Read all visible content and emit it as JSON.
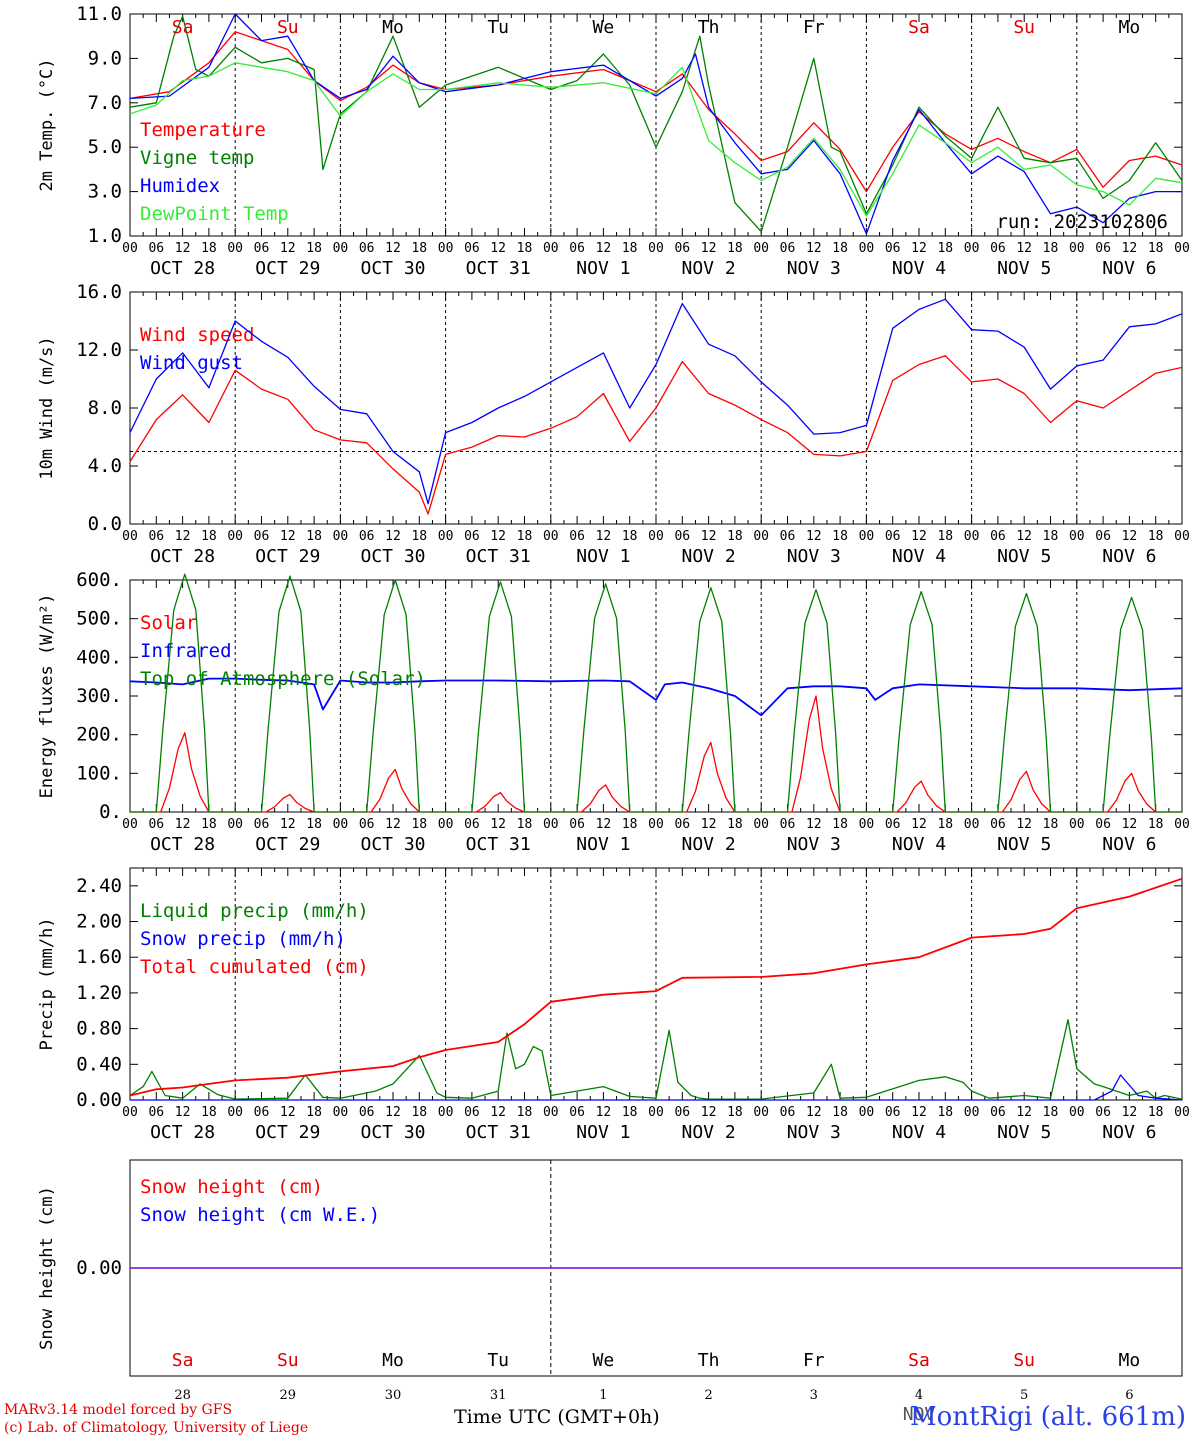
{
  "run_label": "run: 2023102806",
  "x_ticks_hours": [
    "00",
    "06",
    "12",
    "18"
  ],
  "dates": [
    "OCT 28",
    "OCT 29",
    "OCT 30",
    "OCT 31",
    "NOV  1",
    "NOV  2",
    "NOV  3",
    "NOV  4",
    "NOV  5",
    "NOV  6"
  ],
  "weekdays": [
    "Sa",
    "Su",
    "Mo",
    "Tu",
    "We",
    "Th",
    "Fr",
    "Sa",
    "Su",
    "Mo"
  ],
  "weekend_color": "#e00000",
  "bottom": {
    "day_numbers": [
      "28",
      "29",
      "30",
      "31",
      "1",
      "2",
      "3",
      "4",
      "5",
      "6"
    ],
    "month_label": "NOV",
    "x_title": "Time UTC (GMT+0h)",
    "footer_line1": "MARv3.14 model forced by GFS",
    "footer_line2": "(c) Lab. of Climatology, University of Liege",
    "station": "MontRigi (alt. 661m)"
  },
  "chart_data": [
    {
      "type": "line",
      "ylabel": "2m Temp. (°C)",
      "ylim": [
        1,
        11
      ],
      "y_ticks": [
        "1.0",
        "3.0",
        "5.0",
        "7.0",
        "9.0",
        "11.0"
      ],
      "x_unit": "hours since OCT 28 00 UTC",
      "series": [
        {
          "name": "Temperature",
          "color": "#ff0000",
          "x": [
            0,
            9,
            18,
            24,
            30,
            36,
            42,
            48,
            54,
            60,
            66,
            72,
            84,
            96,
            108,
            120,
            126,
            132,
            138,
            144,
            150,
            156,
            162,
            168,
            174,
            180,
            186,
            192,
            198,
            204,
            210,
            216,
            222,
            228,
            234,
            240
          ],
          "y": [
            7.2,
            7.5,
            8.8,
            10.2,
            9.8,
            9.4,
            8.0,
            7.1,
            7.7,
            8.7,
            7.9,
            7.6,
            7.8,
            8.2,
            8.5,
            7.5,
            8.3,
            6.7,
            5.6,
            4.4,
            4.8,
            6.1,
            4.9,
            3.0,
            5.0,
            6.6,
            5.6,
            4.9,
            5.4,
            4.8,
            4.3,
            4.9,
            3.2,
            4.4,
            4.6,
            4.2
          ]
        },
        {
          "name": "Vigne temp",
          "color": "#008000",
          "x": [
            0,
            6,
            10,
            12,
            15,
            18,
            24,
            30,
            36,
            42,
            44,
            48,
            54,
            60,
            66,
            72,
            84,
            96,
            102,
            108,
            114,
            120,
            126,
            130,
            132,
            138,
            144,
            150,
            156,
            160,
            162,
            168,
            174,
            180,
            186,
            192,
            198,
            204,
            210,
            216,
            222,
            228,
            234,
            240
          ],
          "y": [
            6.8,
            7.0,
            10.0,
            10.9,
            8.5,
            8.2,
            9.5,
            8.8,
            9.0,
            8.5,
            4.0,
            6.5,
            7.5,
            10.0,
            6.8,
            7.8,
            8.6,
            7.6,
            8.0,
            9.2,
            7.8,
            5.0,
            7.5,
            10.0,
            7.8,
            2.5,
            1.2,
            5.0,
            9.0,
            5.0,
            4.8,
            2.0,
            4.2,
            6.8,
            5.5,
            4.5,
            6.8,
            4.5,
            4.3,
            4.5,
            2.7,
            3.5,
            5.2,
            3.5
          ]
        },
        {
          "name": "Humidex",
          "color": "#0000ff",
          "x": [
            0,
            9,
            18,
            24,
            30,
            36,
            42,
            48,
            54,
            60,
            66,
            72,
            84,
            96,
            108,
            120,
            126,
            129,
            132,
            138,
            144,
            150,
            156,
            162,
            168,
            174,
            180,
            186,
            192,
            198,
            204,
            210,
            216,
            222,
            228,
            234,
            240
          ],
          "y": [
            7.2,
            7.3,
            8.6,
            11.0,
            9.8,
            10.0,
            8.0,
            7.2,
            7.6,
            9.1,
            7.9,
            7.5,
            7.8,
            8.4,
            8.7,
            7.3,
            8.1,
            9.2,
            6.8,
            5.2,
            3.8,
            4.0,
            5.3,
            3.8,
            1.1,
            4.4,
            6.7,
            5.2,
            3.8,
            4.6,
            3.9,
            2.0,
            2.3,
            1.6,
            2.7,
            3.0,
            3.0
          ]
        },
        {
          "name": "DewPoint Temp",
          "color": "#33ee33",
          "x": [
            0,
            6,
            12,
            18,
            24,
            30,
            36,
            42,
            48,
            54,
            60,
            66,
            72,
            84,
            96,
            108,
            120,
            126,
            132,
            138,
            144,
            150,
            156,
            162,
            168,
            174,
            180,
            186,
            192,
            198,
            204,
            210,
            216,
            222,
            228,
            234,
            240
          ],
          "y": [
            6.5,
            6.9,
            8.0,
            8.2,
            8.8,
            8.6,
            8.4,
            8.0,
            6.4,
            7.5,
            8.3,
            7.6,
            7.6,
            7.9,
            7.7,
            7.9,
            7.4,
            8.6,
            5.3,
            4.3,
            3.5,
            4.1,
            5.4,
            4.0,
            1.9,
            3.8,
            6.0,
            5.2,
            4.3,
            5.0,
            4.0,
            4.2,
            3.3,
            3.0,
            2.4,
            3.6,
            3.4
          ]
        }
      ]
    },
    {
      "type": "line",
      "ylabel": "10m Wind (m/s)",
      "ylim": [
        0,
        16
      ],
      "y_ticks": [
        "0.0",
        "4.0",
        "8.0",
        "12.0",
        "16.0"
      ],
      "reference_line": 5,
      "series": [
        {
          "name": "Wind speed",
          "color": "#ff0000",
          "x": [
            0,
            6,
            12,
            18,
            24,
            30,
            36,
            42,
            48,
            54,
            60,
            66,
            68,
            72,
            78,
            84,
            90,
            96,
            102,
            108,
            114,
            120,
            126,
            132,
            138,
            144,
            150,
            156,
            162,
            168,
            174,
            180,
            186,
            192,
            198,
            204,
            210,
            216,
            222,
            228,
            234,
            240
          ],
          "y": [
            4.3,
            7.2,
            8.9,
            7.0,
            10.6,
            9.3,
            8.6,
            6.5,
            5.8,
            5.6,
            3.8,
            2.2,
            0.7,
            4.8,
            5.3,
            6.1,
            6.0,
            6.6,
            7.4,
            9.0,
            5.7,
            8.0,
            11.2,
            9.0,
            8.2,
            7.2,
            6.3,
            4.8,
            4.7,
            5.0,
            9.9,
            11.0,
            11.6,
            9.8,
            10.0,
            9.0,
            7.0,
            8.5,
            8.0,
            9.2,
            10.4,
            10.8
          ]
        },
        {
          "name": "Wind gust",
          "color": "#0000ff",
          "x": [
            0,
            6,
            12,
            18,
            24,
            30,
            36,
            42,
            48,
            54,
            60,
            66,
            68,
            72,
            78,
            84,
            90,
            96,
            102,
            108,
            114,
            120,
            126,
            132,
            138,
            144,
            150,
            156,
            162,
            168,
            174,
            180,
            186,
            192,
            198,
            204,
            210,
            216,
            222,
            228,
            234,
            240
          ],
          "y": [
            6.3,
            10.0,
            11.8,
            9.4,
            14.0,
            12.6,
            11.5,
            9.5,
            7.9,
            7.6,
            5.0,
            3.6,
            1.4,
            6.3,
            7.0,
            8.0,
            8.8,
            9.8,
            10.8,
            11.8,
            8.0,
            11.0,
            15.2,
            12.4,
            11.6,
            9.8,
            8.2,
            6.2,
            6.3,
            6.8,
            13.5,
            14.8,
            15.5,
            13.4,
            13.3,
            12.2,
            9.3,
            10.9,
            11.3,
            13.6,
            13.8,
            14.5
          ]
        }
      ]
    },
    {
      "type": "line",
      "ylabel": "Energy fluxes (W/m²)",
      "ylim": [
        0,
        600
      ],
      "y_ticks": [
        "0.",
        "100.",
        "200.",
        "300.",
        "400.",
        "500.",
        "600."
      ],
      "series": [
        {
          "name": "Solar",
          "color": "#ff0000",
          "day_peaks": [
            205,
            45,
            110,
            50,
            70,
            180,
            300,
            80,
            105,
            100
          ]
        },
        {
          "name": "Infrared",
          "color": "#0000ff",
          "x": [
            0,
            6,
            12,
            18,
            24,
            30,
            36,
            42,
            44,
            48,
            54,
            60,
            66,
            72,
            84,
            96,
            108,
            114,
            120,
            122,
            126,
            132,
            138,
            144,
            150,
            156,
            162,
            168,
            170,
            174,
            180,
            192,
            204,
            216,
            228,
            240
          ],
          "y": [
            338,
            335,
            330,
            345,
            345,
            342,
            340,
            330,
            265,
            340,
            335,
            335,
            338,
            340,
            340,
            338,
            340,
            338,
            290,
            330,
            335,
            320,
            300,
            250,
            320,
            325,
            325,
            320,
            290,
            320,
            330,
            325,
            320,
            320,
            315,
            320
          ]
        },
        {
          "name": "Top of Atmosphere (Solar)",
          "color": "#008000",
          "day_peaks": [
            615,
            610,
            600,
            595,
            590,
            580,
            575,
            570,
            565,
            555
          ]
        }
      ]
    },
    {
      "type": "line",
      "ylabel": "Precip (mm/h)",
      "ylim": [
        0,
        2.6
      ],
      "y_ticks": [
        "0.00",
        "0.40",
        "0.80",
        "1.20",
        "1.60",
        "2.00",
        "2.40"
      ],
      "series": [
        {
          "name": "Liquid precip (mm/h)",
          "color": "#008000",
          "x": [
            0,
            3,
            5,
            8,
            12,
            16,
            20,
            24,
            36,
            40,
            44,
            48,
            56,
            60,
            66,
            70,
            72,
            78,
            84,
            86,
            88,
            90,
            92,
            94,
            96,
            108,
            114,
            120,
            123,
            125,
            128,
            130,
            132,
            144,
            156,
            160,
            162,
            168,
            180,
            186,
            190,
            192,
            196,
            204,
            210,
            214,
            216,
            220,
            222,
            228,
            232,
            234,
            236,
            240
          ],
          "y": [
            0.05,
            0.15,
            0.32,
            0.05,
            0.02,
            0.18,
            0.06,
            0.01,
            0.02,
            0.28,
            0.03,
            0.02,
            0.1,
            0.18,
            0.5,
            0.08,
            0.03,
            0.02,
            0.1,
            0.75,
            0.35,
            0.4,
            0.6,
            0.55,
            0.05,
            0.15,
            0.04,
            0.02,
            0.78,
            0.2,
            0.05,
            0.02,
            0.01,
            0.01,
            0.08,
            0.4,
            0.02,
            0.03,
            0.22,
            0.26,
            0.2,
            0.1,
            0.02,
            0.05,
            0.02,
            0.9,
            0.35,
            0.18,
            0.15,
            0.05,
            0.1,
            0.02,
            0.05,
            0.01
          ]
        },
        {
          "name": "Snow precip (mm/h)",
          "color": "#0000ff",
          "x": [
            0,
            220,
            224,
            226,
            230,
            234,
            240
          ],
          "y": [
            0,
            0,
            0.1,
            0.28,
            0.05,
            0.02,
            0
          ]
        },
        {
          "name": "Total cumulated (cm)",
          "color": "#ff0000",
          "x": [
            0,
            6,
            12,
            18,
            24,
            36,
            48,
            60,
            66,
            72,
            84,
            90,
            96,
            108,
            120,
            126,
            144,
            156,
            168,
            180,
            192,
            204,
            210,
            216,
            228,
            240
          ],
          "y": [
            0.05,
            0.12,
            0.14,
            0.18,
            0.22,
            0.25,
            0.32,
            0.38,
            0.48,
            0.56,
            0.65,
            0.85,
            1.1,
            1.18,
            1.22,
            1.37,
            1.38,
            1.42,
            1.52,
            1.6,
            1.82,
            1.86,
            1.92,
            2.15,
            2.28,
            2.48
          ]
        }
      ]
    },
    {
      "type": "line",
      "ylabel": "Snow height (cm)",
      "ylim": [
        -1,
        1
      ],
      "y_ticks": [
        "0.00"
      ],
      "series": [
        {
          "name": "Snow height (cm)",
          "color": "#ff0000",
          "x": [
            0,
            240
          ],
          "y": [
            0,
            0
          ]
        },
        {
          "name": "Snow height (cm W.E.)",
          "color": "#0000ff",
          "x": [
            0,
            240
          ],
          "y": [
            0,
            0
          ]
        }
      ]
    }
  ]
}
